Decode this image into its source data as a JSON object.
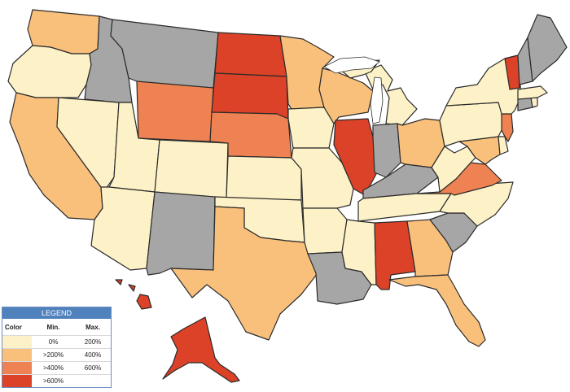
{
  "legend": {
    "title": "LEGEND",
    "headers": {
      "color": "Color",
      "min": "Min.",
      "max": "Max."
    },
    "rows": [
      {
        "color": "#fdf2c7",
        "min": "0%",
        "max": "200%"
      },
      {
        "color": "#f9c07c",
        "min": ">200%",
        "max": "400%"
      },
      {
        "color": "#ee8252",
        "min": ">400%",
        "max": "600%"
      },
      {
        "color": "#db4228",
        "min": ">600%",
        "max": ""
      }
    ]
  },
  "no_data_color": "#a6a6a6",
  "states": [
    {
      "name": "Washington",
      "class": "2"
    },
    {
      "name": "Oregon",
      "class": "1"
    },
    {
      "name": "California",
      "class": "2"
    },
    {
      "name": "Nevada",
      "class": "1"
    },
    {
      "name": "Idaho",
      "class": "none"
    },
    {
      "name": "Montana",
      "class": "none"
    },
    {
      "name": "Wyoming",
      "class": "3"
    },
    {
      "name": "Utah",
      "class": "1"
    },
    {
      "name": "Arizona",
      "class": "1"
    },
    {
      "name": "Colorado",
      "class": "1"
    },
    {
      "name": "New Mexico",
      "class": "none"
    },
    {
      "name": "North Dakota",
      "class": "4"
    },
    {
      "name": "South Dakota",
      "class": "4"
    },
    {
      "name": "Nebraska",
      "class": "3"
    },
    {
      "name": "Kansas",
      "class": "1"
    },
    {
      "name": "Oklahoma",
      "class": "1"
    },
    {
      "name": "Texas",
      "class": "2"
    },
    {
      "name": "Minnesota",
      "class": "2"
    },
    {
      "name": "Iowa",
      "class": "1"
    },
    {
      "name": "Missouri",
      "class": "1"
    },
    {
      "name": "Arkansas",
      "class": "1"
    },
    {
      "name": "Louisiana",
      "class": "none"
    },
    {
      "name": "Wisconsin",
      "class": "2"
    },
    {
      "name": "Illinois",
      "class": "4"
    },
    {
      "name": "Michigan",
      "class": "1"
    },
    {
      "name": "Indiana",
      "class": "none"
    },
    {
      "name": "Ohio",
      "class": "2"
    },
    {
      "name": "Kentucky",
      "class": "none"
    },
    {
      "name": "Tennessee",
      "class": "1"
    },
    {
      "name": "Mississippi",
      "class": "1"
    },
    {
      "name": "Alabama",
      "class": "4"
    },
    {
      "name": "Georgia",
      "class": "2"
    },
    {
      "name": "Florida",
      "class": "2"
    },
    {
      "name": "South Carolina",
      "class": "none"
    },
    {
      "name": "North Carolina",
      "class": "1"
    },
    {
      "name": "Virginia",
      "class": "3"
    },
    {
      "name": "West Virginia",
      "class": "1"
    },
    {
      "name": "Maryland",
      "class": "2"
    },
    {
      "name": "Delaware",
      "class": "1"
    },
    {
      "name": "Pennsylvania",
      "class": "1"
    },
    {
      "name": "New Jersey",
      "class": "3"
    },
    {
      "name": "New York",
      "class": "1"
    },
    {
      "name": "Connecticut",
      "class": "none"
    },
    {
      "name": "Rhode Island",
      "class": "1"
    },
    {
      "name": "Massachusetts",
      "class": "1"
    },
    {
      "name": "Vermont",
      "class": "4"
    },
    {
      "name": "New Hampshire",
      "class": "none"
    },
    {
      "name": "Maine",
      "class": "none"
    },
    {
      "name": "Alaska",
      "class": "4"
    },
    {
      "name": "Hawaii",
      "class": "4"
    }
  ]
}
